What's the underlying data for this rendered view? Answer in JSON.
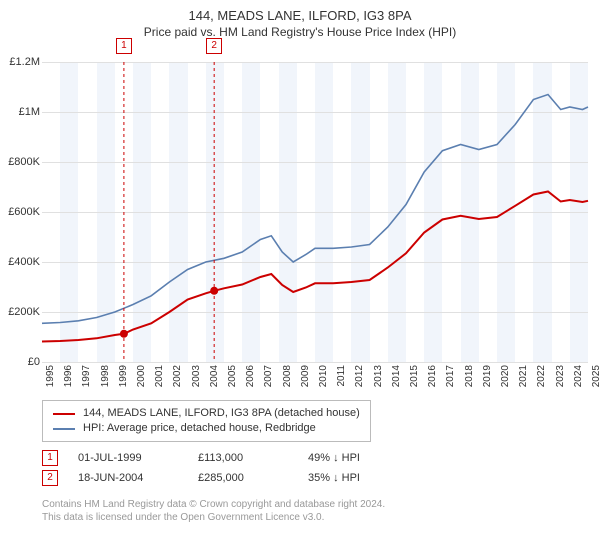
{
  "title": "144, MEADS LANE, ILFORD, IG3 8PA",
  "subtitle": "Price paid vs. HM Land Registry's House Price Index (HPI)",
  "chart": {
    "type": "line",
    "background_color": "#ffffff",
    "grid_color": "#e0e0e0",
    "band_color": "#f1f5fb",
    "x": {
      "min": 1995,
      "max": 2025,
      "ticks": [
        1995,
        1996,
        1997,
        1998,
        1999,
        2000,
        2001,
        2002,
        2003,
        2004,
        2005,
        2006,
        2007,
        2008,
        2009,
        2010,
        2011,
        2012,
        2013,
        2014,
        2015,
        2016,
        2017,
        2018,
        2019,
        2020,
        2021,
        2022,
        2023,
        2024,
        2025
      ]
    },
    "y": {
      "min": 0,
      "max": 1200000,
      "ticks": [
        0,
        200000,
        400000,
        600000,
        800000,
        1000000,
        1200000
      ],
      "labels": [
        "£0",
        "£200K",
        "£400K",
        "£600K",
        "£800K",
        "£1M",
        "£1.2M"
      ]
    },
    "series": [
      {
        "name": "HPI: Average price, detached house, Redbridge",
        "color": "#5b7fb0",
        "width": 1.6,
        "points": [
          [
            1995,
            155000
          ],
          [
            1996,
            158000
          ],
          [
            1997,
            165000
          ],
          [
            1998,
            178000
          ],
          [
            1999,
            200000
          ],
          [
            2000,
            230000
          ],
          [
            2001,
            265000
          ],
          [
            2002,
            320000
          ],
          [
            2003,
            370000
          ],
          [
            2004,
            400000
          ],
          [
            2005,
            415000
          ],
          [
            2006,
            440000
          ],
          [
            2007,
            490000
          ],
          [
            2007.6,
            505000
          ],
          [
            2008.2,
            440000
          ],
          [
            2008.8,
            400000
          ],
          [
            2009.5,
            430000
          ],
          [
            2010,
            455000
          ],
          [
            2011,
            455000
          ],
          [
            2012,
            460000
          ],
          [
            2013,
            470000
          ],
          [
            2014,
            540000
          ],
          [
            2015,
            630000
          ],
          [
            2016,
            760000
          ],
          [
            2017,
            845000
          ],
          [
            2018,
            870000
          ],
          [
            2019,
            850000
          ],
          [
            2020,
            870000
          ],
          [
            2021,
            950000
          ],
          [
            2022,
            1050000
          ],
          [
            2022.8,
            1070000
          ],
          [
            2023.5,
            1010000
          ],
          [
            2024,
            1020000
          ],
          [
            2024.7,
            1010000
          ],
          [
            2025,
            1020000
          ]
        ]
      },
      {
        "name": "144, MEADS LANE, ILFORD, IG3 8PA (detached house)",
        "color": "#cc0000",
        "width": 2.0,
        "points": [
          [
            1995,
            82000
          ],
          [
            1996,
            84000
          ],
          [
            1997,
            88000
          ],
          [
            1998,
            95000
          ],
          [
            1999,
            108000
          ],
          [
            1999.5,
            113000
          ],
          [
            2000,
            130000
          ],
          [
            2001,
            155000
          ],
          [
            2002,
            200000
          ],
          [
            2003,
            250000
          ],
          [
            2004,
            275000
          ],
          [
            2004.46,
            285000
          ],
          [
            2005,
            295000
          ],
          [
            2006,
            310000
          ],
          [
            2007,
            340000
          ],
          [
            2007.6,
            352000
          ],
          [
            2008.2,
            308000
          ],
          [
            2008.8,
            280000
          ],
          [
            2009.5,
            298000
          ],
          [
            2010,
            315000
          ],
          [
            2011,
            315000
          ],
          [
            2012,
            320000
          ],
          [
            2013,
            328000
          ],
          [
            2014,
            378000
          ],
          [
            2015,
            435000
          ],
          [
            2016,
            518000
          ],
          [
            2017,
            570000
          ],
          [
            2018,
            585000
          ],
          [
            2019,
            572000
          ],
          [
            2020,
            580000
          ],
          [
            2021,
            625000
          ],
          [
            2022,
            670000
          ],
          [
            2022.8,
            682000
          ],
          [
            2023.5,
            642000
          ],
          [
            2024,
            648000
          ],
          [
            2024.7,
            640000
          ],
          [
            2025,
            645000
          ]
        ]
      }
    ],
    "sale_markers": [
      {
        "n": "1",
        "year": 1999.5,
        "price": 113000
      },
      {
        "n": "2",
        "year": 2004.46,
        "price": 285000
      }
    ]
  },
  "legend": {
    "items": [
      {
        "color": "#cc0000",
        "label": "144, MEADS LANE, ILFORD, IG3 8PA (detached house)"
      },
      {
        "color": "#5b7fb0",
        "label": "HPI: Average price, detached house, Redbridge"
      }
    ]
  },
  "sales": [
    {
      "n": "1",
      "date": "01-JUL-1999",
      "price": "£113,000",
      "delta": "49% ↓ HPI"
    },
    {
      "n": "2",
      "date": "18-JUN-2004",
      "price": "£285,000",
      "delta": "35% ↓ HPI"
    }
  ],
  "footer": {
    "l1": "Contains HM Land Registry data © Crown copyright and database right 2024.",
    "l2": "This data is licensed under the Open Government Licence v3.0."
  }
}
